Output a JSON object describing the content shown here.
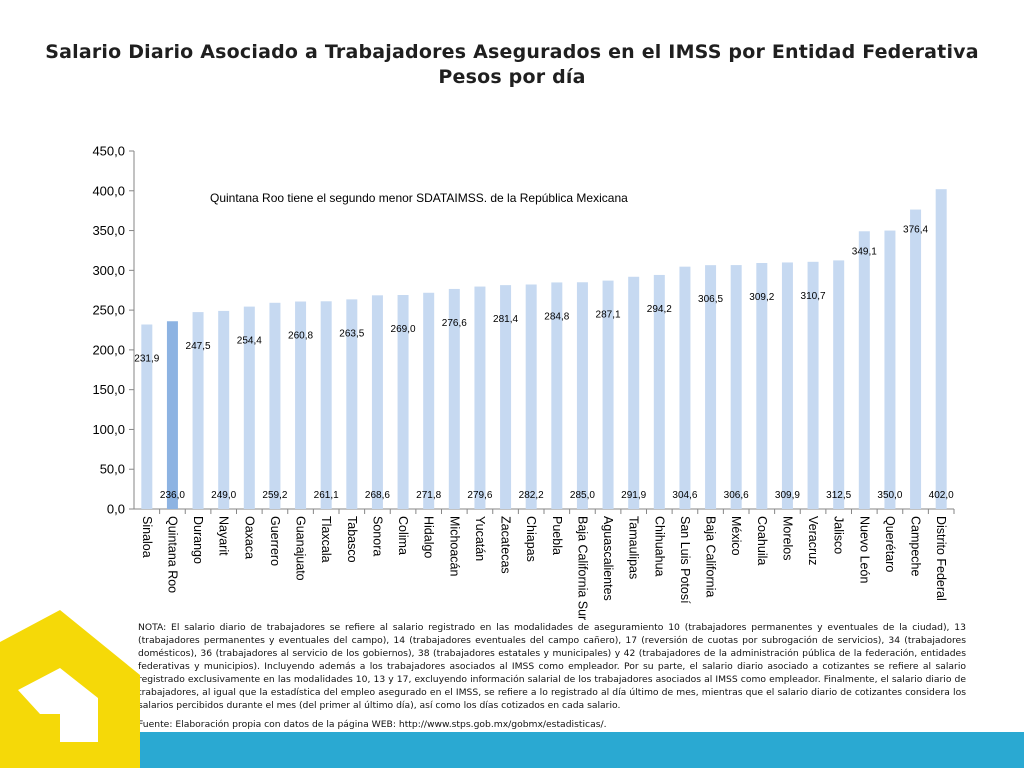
{
  "title": {
    "line1": "Salario Diario Asociado a Trabajadores Asegurados en el IMSS por Entidad Federativa",
    "line2": "Pesos por día"
  },
  "colors": {
    "bar": "#c6d9f1",
    "bar_highlight": "#8db3e2",
    "footer": "#2aa9d2",
    "logo": "#f5d908"
  },
  "note": "NOTA: El salario diario de trabajadores se refiere al salario registrado en las modalidades de aseguramiento 10 (trabajadores permanentes y eventuales de la ciudad), 13 (trabajadores permanentes y eventuales del campo), 14 (trabajadores eventuales del campo cañero), 17 (reversión de cuotas por subrogación de servicios), 34 (trabajadores domésticos), 36 (trabajadores al servicio de los gobiernos), 38 (trabajadores estatales y municipales) y 42 (trabajadores de la administración pública de la federación, entidades federativas y municipios). Incluyendo además a los trabajadores asociados al IMSS como empleador. Por su parte, el salario diario asociado a cotizantes se refiere al salario registrado exclusivamente en las modalidades 10, 13 y 17, excluyendo información salarial de los trabajadores asociados al IMSS como empleador. Finalmente, el salario diario de trabajadores, al igual que la estadística del empleo asegurado en el IMSS, se refiere a lo registrado al día último de mes, mientras que el salario diario de cotizantes considera los salarios percibidos durante el mes (del primer al último día), así como los días cotizados en cada salario.",
  "source": "Fuente: Elaboración propia con datos de la página WEB: http://www.stps.gob.mx/gobmx/estadisticas/.",
  "chart_data": {
    "type": "bar",
    "annotation": "Quintana Roo tiene el segundo menor SDATAIMSS. de la República Mexicana",
    "highlight": "Quintana Roo",
    "ylim": [
      0,
      450
    ],
    "yticks": [
      "0,0",
      "50,0",
      "100,0",
      "150,0",
      "200,0",
      "250,0",
      "300,0",
      "350,0",
      "400,0",
      "450,0"
    ],
    "grid": false,
    "categories": [
      "Sinaloa",
      "Quintana Roo",
      "Durango",
      "Nayarit",
      "Oaxaca",
      "Guerrero",
      "Guanajuato",
      "Tlaxcala",
      "Tabasco",
      "Sonora",
      "Colima",
      "Hidalgo",
      "Michoacán",
      "Yucatán",
      "Zacatecas",
      "Chiapas",
      "Puebla",
      "Baja California Sur",
      "Aguascalientes",
      "Tamaulipas",
      "Chihuahua",
      "San Luis Potosí",
      "Baja California",
      "México",
      "Coahuila",
      "Morelos",
      "Veracruz",
      "Jalisco",
      "Nuevo León",
      "Querétaro",
      "Campeche",
      "Distrito Federal"
    ],
    "values": [
      231.9,
      236.0,
      247.5,
      249.0,
      254.4,
      259.2,
      260.8,
      261.1,
      263.5,
      268.6,
      269.0,
      271.8,
      276.6,
      279.6,
      281.4,
      282.2,
      284.8,
      285.0,
      287.1,
      291.9,
      294.2,
      304.6,
      306.5,
      306.6,
      309.2,
      309.9,
      310.7,
      312.5,
      349.1,
      350.0,
      376.4,
      402.0
    ],
    "data_labels": [
      "231,9",
      "236,0",
      "247,5",
      "249,0",
      "254,4",
      "259,2",
      "260,8",
      "261,1",
      "263,5",
      "268,6",
      "269,0",
      "271,8",
      "276,6",
      "279,6",
      "281,4",
      "282,2",
      "284,8",
      "285,0",
      "287,1",
      "291,9",
      "294,2",
      "304,6",
      "306,5",
      "306,6",
      "309,2",
      "309,9",
      "310,7",
      "312,5",
      "349,1",
      "350,0",
      "376,4",
      "402,0"
    ]
  }
}
